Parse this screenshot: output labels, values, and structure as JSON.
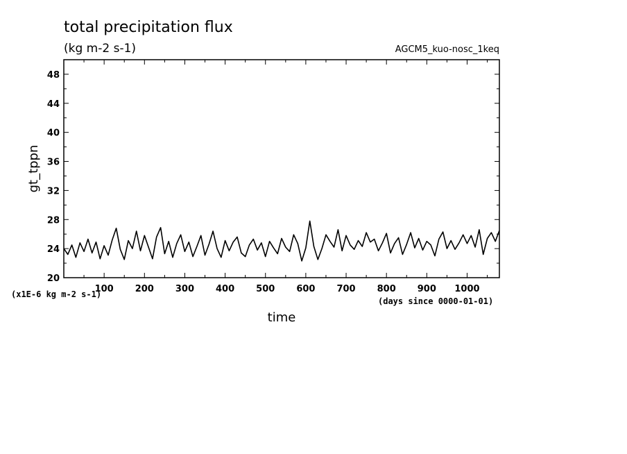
{
  "chart_data": {
    "type": "line",
    "title": "total precipitation flux",
    "subtitle": "(kg m-2 s-1)",
    "run_label": "AGCM5_kuo-nosc_1keq",
    "xlabel": "time",
    "ylabel": "gt_tppn",
    "x_unit_note": "(days since 0000-01-01)",
    "y_scale_note": "(x1E-6 kg m-2 s-1)",
    "xlim": [
      0,
      1080
    ],
    "ylim": [
      20,
      50
    ],
    "x_ticks": [
      100,
      200,
      300,
      400,
      500,
      600,
      700,
      800,
      900,
      1000
    ],
    "y_ticks": [
      20,
      24,
      28,
      32,
      36,
      40,
      44,
      48
    ],
    "grid": false,
    "series": [
      {
        "color": "#000000",
        "x": [
          0,
          10,
          20,
          30,
          40,
          50,
          60,
          70,
          80,
          90,
          100,
          110,
          120,
          130,
          140,
          150,
          160,
          170,
          180,
          190,
          200,
          210,
          220,
          230,
          240,
          250,
          260,
          270,
          280,
          290,
          300,
          310,
          320,
          330,
          340,
          350,
          360,
          370,
          380,
          390,
          400,
          410,
          420,
          430,
          440,
          450,
          460,
          470,
          480,
          490,
          500,
          510,
          520,
          530,
          540,
          550,
          560,
          570,
          580,
          590,
          600,
          610,
          620,
          630,
          640,
          650,
          660,
          670,
          680,
          690,
          700,
          710,
          720,
          730,
          740,
          750,
          760,
          770,
          780,
          790,
          800,
          810,
          820,
          830,
          840,
          850,
          860,
          870,
          880,
          890,
          900,
          910,
          920,
          930,
          940,
          950,
          960,
          970,
          980,
          990,
          1000,
          1010,
          1020,
          1030,
          1040,
          1050,
          1060,
          1070,
          1080
        ],
        "y": [
          24.0,
          23.2,
          24.5,
          22.8,
          24.8,
          23.6,
          25.3,
          23.4,
          24.9,
          22.6,
          24.4,
          23.1,
          25.2,
          26.8,
          23.9,
          22.5,
          25.1,
          24.0,
          26.4,
          23.7,
          25.8,
          24.2,
          22.6,
          25.6,
          26.9,
          23.3,
          25.0,
          22.8,
          24.7,
          25.9,
          23.6,
          24.9,
          22.9,
          24.3,
          25.8,
          23.1,
          24.6,
          26.4,
          24.0,
          22.8,
          25.1,
          23.7,
          24.9,
          25.6,
          23.4,
          22.9,
          24.5,
          25.3,
          23.8,
          24.8,
          22.9,
          25.0,
          24.1,
          23.3,
          25.4,
          24.2,
          23.6,
          25.9,
          24.7,
          22.3,
          24.1,
          27.8,
          24.3,
          22.5,
          24.0,
          25.9,
          25.0,
          24.2,
          26.6,
          23.7,
          25.8,
          24.5,
          23.9,
          25.1,
          24.3,
          26.2,
          24.9,
          25.3,
          23.7,
          24.8,
          26.1,
          23.4,
          24.7,
          25.5,
          23.2,
          24.6,
          26.2,
          24.1,
          25.4,
          23.8,
          25.0,
          24.5,
          23.0,
          25.3,
          26.3,
          24.0,
          25.1,
          23.9,
          24.8,
          25.9,
          24.7,
          25.8,
          24.2,
          26.6,
          23.2,
          25.4,
          26.2,
          25.0,
          26.5
        ]
      }
    ]
  }
}
